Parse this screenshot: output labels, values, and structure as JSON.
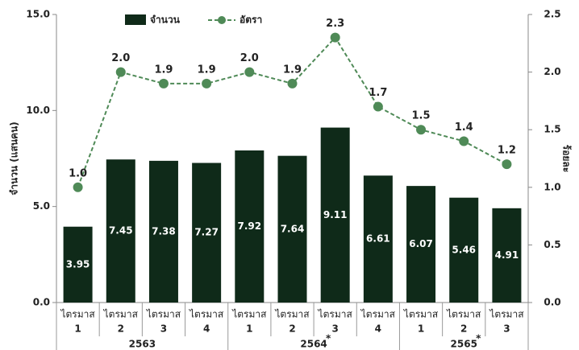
{
  "chart_data": {
    "type": "bar_line",
    "y_label": "จำนวน (แสนคน)",
    "y2_label": "ร้อยละ",
    "categories": [
      [
        "ไตรมาส",
        "1"
      ],
      [
        "ไตรมาส",
        "2"
      ],
      [
        "ไตรมาส",
        "3"
      ],
      [
        "ไตรมาส",
        "4"
      ],
      [
        "ไตรมาส",
        "1"
      ],
      [
        "ไตรมาส",
        "2"
      ],
      [
        "ไตรมาส",
        "3"
      ],
      [
        "ไตรมาส",
        "4"
      ],
      [
        "ไตรมาส",
        "1"
      ],
      [
        "ไตรมาส",
        "2"
      ],
      [
        "ไตรมาส",
        "3"
      ]
    ],
    "groups": [
      {
        "label": "2563"
      },
      {
        "label": "2564",
        "note": "*"
      },
      {
        "label": "2565",
        "note": "*"
      }
    ],
    "series": [
      {
        "name": "จำนวน",
        "color": "#0f2a19",
        "values": [
          3.95,
          7.45,
          7.38,
          7.27,
          7.92,
          7.64,
          9.11,
          6.61,
          6.07,
          5.46,
          4.91
        ]
      },
      {
        "name": "อัตรา",
        "color": "#4f8a57",
        "axis": "y2",
        "values": [
          1.0,
          2.0,
          1.9,
          1.9,
          2.0,
          1.9,
          2.3,
          1.7,
          1.5,
          1.4,
          1.2
        ],
        "value_labels": [
          "1.0",
          "2.0",
          "1.9",
          "1.9",
          "2.0",
          "1.9",
          "2.3",
          "1.7",
          "1.5",
          "1.4",
          "1.2"
        ]
      }
    ],
    "ylim": [
      0,
      15
    ],
    "yticks": [
      {
        "value": 0,
        "label": "0.0"
      },
      {
        "value": 5,
        "label": "5.0"
      },
      {
        "value": 10,
        "label": "10.0"
      },
      {
        "value": 15,
        "label": "15.0"
      }
    ],
    "y2lim": [
      0,
      2.5
    ],
    "y2ticks": [
      {
        "value": 0,
        "label": "0.0"
      },
      0.5,
      {
        "value": 1,
        "label": "1.0"
      },
      1.5,
      {
        "value": 2,
        "label": "2.0"
      },
      2.5
    ]
  }
}
